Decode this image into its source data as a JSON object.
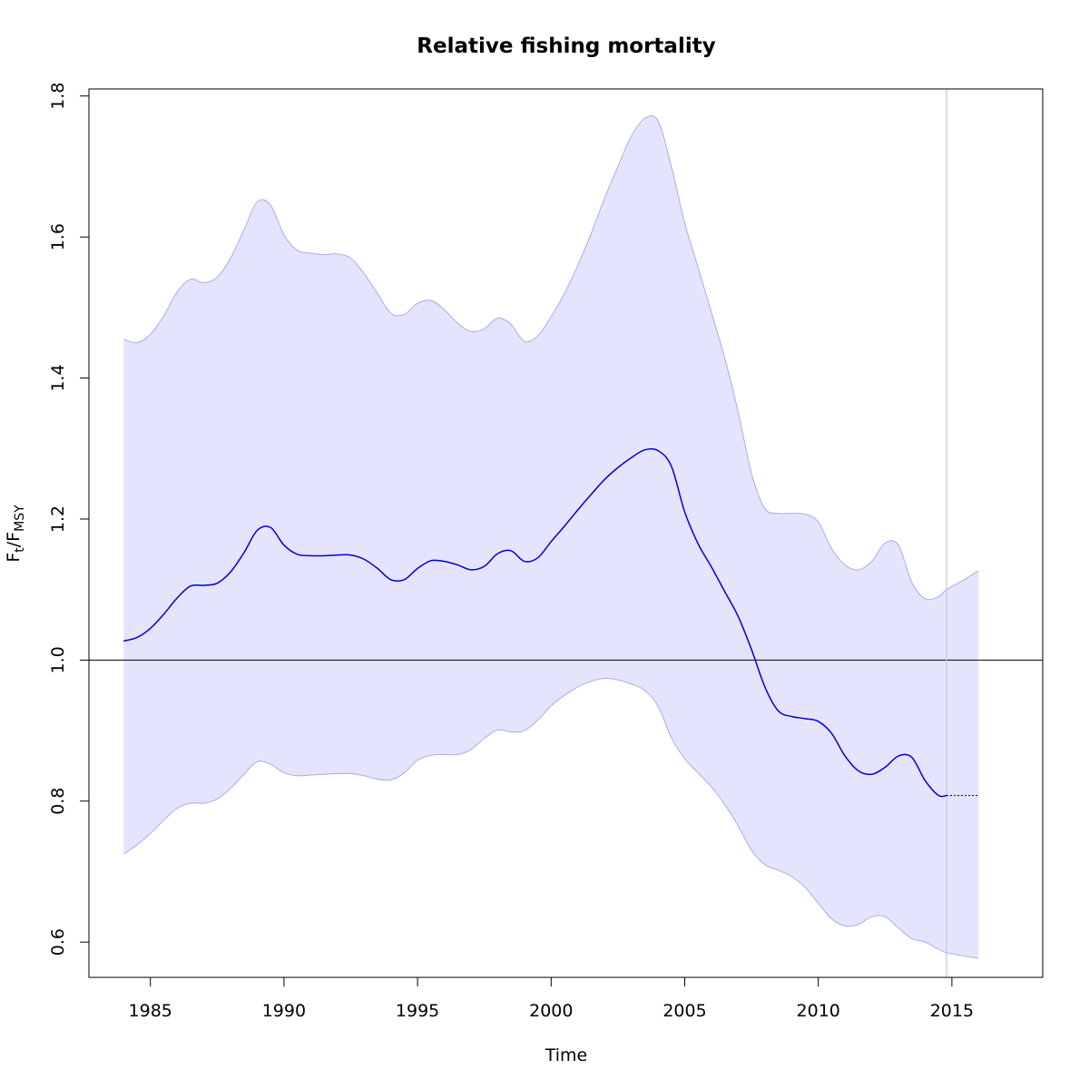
{
  "chart_data": {
    "type": "line",
    "title": "Relative fishing mortality",
    "xlabel": "Time",
    "ylabel": {
      "base": "F",
      "sub1": "t",
      "sep": "/F",
      "sub2": "MSY"
    },
    "xlim": [
      1982.7,
      2018.4
    ],
    "ylim": [
      0.55,
      1.81
    ],
    "xticks": [
      1985,
      1990,
      1995,
      2000,
      2005,
      2010,
      2015
    ],
    "xtick_labels": [
      "1985",
      "1990",
      "1995",
      "2000",
      "2005",
      "2010",
      "2015"
    ],
    "yticks": [
      0.6,
      0.8,
      1.0,
      1.2,
      1.4,
      1.6,
      1.8
    ],
    "ytick_labels": [
      "0.6",
      "0.8",
      "1.0",
      "1.2",
      "1.4",
      "1.6",
      "1.8"
    ],
    "reference_hline": 1.0,
    "last_observation_vline": 2014.8,
    "colors": {
      "estimate": "#0000dd",
      "band_fill": "#e4e4fd",
      "band_edge": "#aaaaf0",
      "vline": "#c8c8d8",
      "hline": "#000000"
    },
    "series": [
      {
        "role": "estimate",
        "x": [
          1984.0,
          1984.5,
          1985.0,
          1985.5,
          1986.0,
          1986.5,
          1987.0,
          1987.5,
          1988.0,
          1988.5,
          1989.0,
          1989.5,
          1990.0,
          1990.5,
          1991.0,
          1991.5,
          1992.0,
          1992.5,
          1993.0,
          1993.5,
          1994.0,
          1994.5,
          1995.0,
          1995.5,
          1996.0,
          1996.5,
          1997.0,
          1997.5,
          1998.0,
          1998.5,
          1999.0,
          1999.5,
          2000.0,
          2000.5,
          2001.0,
          2001.5,
          2002.0,
          2002.5,
          2003.0,
          2003.5,
          2004.0,
          2004.5,
          2005.0,
          2005.5,
          2006.0,
          2006.5,
          2007.0,
          2007.5,
          2008.0,
          2008.5,
          2009.0,
          2009.5,
          2010.0,
          2010.5,
          2011.0,
          2011.5,
          2012.0,
          2012.5,
          2013.0,
          2013.5,
          2014.0,
          2014.5,
          2014.8
        ],
        "values": [
          1.027,
          1.032,
          1.045,
          1.065,
          1.088,
          1.105,
          1.106,
          1.109,
          1.125,
          1.152,
          1.184,
          1.188,
          1.163,
          1.15,
          1.148,
          1.148,
          1.149,
          1.149,
          1.143,
          1.13,
          1.114,
          1.114,
          1.13,
          1.141,
          1.14,
          1.135,
          1.128,
          1.133,
          1.151,
          1.155,
          1.14,
          1.145,
          1.168,
          1.19,
          1.213,
          1.235,
          1.256,
          1.273,
          1.287,
          1.298,
          1.297,
          1.275,
          1.21,
          1.165,
          1.132,
          1.097,
          1.062,
          1.015,
          0.962,
          0.928,
          0.92,
          0.917,
          0.913,
          0.896,
          0.864,
          0.843,
          0.838,
          0.848,
          0.864,
          0.862,
          0.829,
          0.808,
          0.808
        ]
      },
      {
        "role": "forecast",
        "x": [
          2014.8,
          2016.0
        ],
        "values": [
          0.808,
          0.808
        ]
      },
      {
        "role": "upper_ci",
        "x": [
          1984.0,
          1984.5,
          1985.0,
          1985.5,
          1986.0,
          1986.5,
          1987.0,
          1987.5,
          1988.0,
          1988.5,
          1989.0,
          1989.5,
          1990.0,
          1990.5,
          1991.0,
          1991.5,
          1992.0,
          1992.5,
          1993.0,
          1993.5,
          1994.0,
          1994.5,
          1995.0,
          1995.5,
          1996.0,
          1996.5,
          1997.0,
          1997.5,
          1998.0,
          1998.5,
          1999.0,
          1999.5,
          2000.0,
          2000.5,
          2001.0,
          2001.5,
          2002.0,
          2002.5,
          2003.0,
          2003.5,
          2004.0,
          2004.5,
          2005.0,
          2005.5,
          2006.0,
          2006.5,
          2007.0,
          2007.5,
          2008.0,
          2008.5,
          2009.0,
          2009.5,
          2010.0,
          2010.5,
          2011.0,
          2011.5,
          2012.0,
          2012.5,
          2013.0,
          2013.5,
          2014.0,
          2014.5,
          2014.8,
          2015.5,
          2016.0
        ],
        "values": [
          1.455,
          1.45,
          1.462,
          1.488,
          1.522,
          1.54,
          1.535,
          1.543,
          1.57,
          1.61,
          1.65,
          1.645,
          1.603,
          1.581,
          1.577,
          1.575,
          1.576,
          1.57,
          1.548,
          1.52,
          1.492,
          1.49,
          1.506,
          1.51,
          1.497,
          1.478,
          1.466,
          1.47,
          1.485,
          1.476,
          1.452,
          1.46,
          1.487,
          1.52,
          1.56,
          1.605,
          1.655,
          1.7,
          1.743,
          1.768,
          1.765,
          1.7,
          1.62,
          1.557,
          1.493,
          1.428,
          1.352,
          1.265,
          1.215,
          1.208,
          1.208,
          1.207,
          1.196,
          1.158,
          1.135,
          1.128,
          1.14,
          1.166,
          1.163,
          1.11,
          1.087,
          1.09,
          1.1,
          1.115,
          1.127
        ]
      },
      {
        "role": "lower_ci",
        "x": [
          1984.0,
          1984.5,
          1985.0,
          1985.5,
          1986.0,
          1986.5,
          1987.0,
          1987.5,
          1988.0,
          1988.5,
          1989.0,
          1989.5,
          1990.0,
          1990.5,
          1991.0,
          1991.5,
          1992.0,
          1992.5,
          1993.0,
          1993.5,
          1994.0,
          1994.5,
          1995.0,
          1995.5,
          1996.0,
          1996.5,
          1997.0,
          1997.5,
          1998.0,
          1998.5,
          1999.0,
          1999.5,
          2000.0,
          2000.5,
          2001.0,
          2001.5,
          2002.0,
          2002.5,
          2003.0,
          2003.5,
          2004.0,
          2004.5,
          2005.0,
          2005.5,
          2006.0,
          2006.5,
          2007.0,
          2007.5,
          2008.0,
          2008.5,
          2009.0,
          2009.5,
          2010.0,
          2010.5,
          2011.0,
          2011.5,
          2012.0,
          2012.5,
          2013.0,
          2013.5,
          2014.0,
          2014.5,
          2014.8,
          2015.5,
          2016.0
        ],
        "values": [
          0.725,
          0.738,
          0.754,
          0.773,
          0.79,
          0.797,
          0.797,
          0.803,
          0.818,
          0.838,
          0.856,
          0.852,
          0.84,
          0.836,
          0.837,
          0.838,
          0.839,
          0.839,
          0.836,
          0.831,
          0.83,
          0.84,
          0.858,
          0.865,
          0.866,
          0.866,
          0.873,
          0.889,
          0.901,
          0.898,
          0.9,
          0.915,
          0.935,
          0.95,
          0.962,
          0.97,
          0.974,
          0.972,
          0.966,
          0.957,
          0.935,
          0.89,
          0.86,
          0.84,
          0.82,
          0.795,
          0.765,
          0.73,
          0.71,
          0.702,
          0.693,
          0.678,
          0.655,
          0.633,
          0.623,
          0.625,
          0.636,
          0.636,
          0.62,
          0.605,
          0.6,
          0.59,
          0.585,
          0.58,
          0.577
        ]
      }
    ]
  }
}
